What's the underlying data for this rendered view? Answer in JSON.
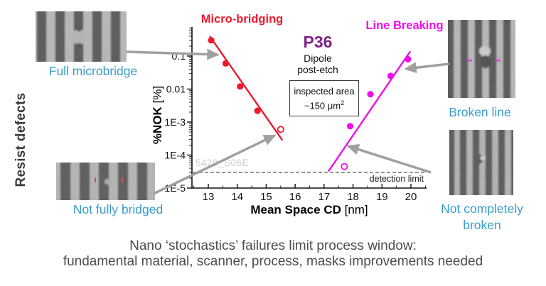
{
  "page": {
    "left_rotated_label": "Resist defects",
    "footer_line1": "Nano ‘stochastics’ failures limit process window:",
    "footer_line2": "fundamental material, scanner, process, masks improvements needed"
  },
  "sem_panels": {
    "top_left_caption": "Full microbridge",
    "bottom_left_caption": "Not fully bridged",
    "top_right_caption": "Broken line",
    "bottom_right_caption_line1": "Not completely",
    "bottom_right_caption_line2": "broken"
  },
  "chart_data": {
    "type": "scatter",
    "series_titles": {
      "left": "Micro-bridging",
      "right": "Line Breaking"
    },
    "center_label": {
      "title": "P36",
      "line1": "Dipole",
      "line2": "post-etch"
    },
    "inspected_box": {
      "line1": "inspected area",
      "line2_prefix": "~150 μm",
      "superscript": "2"
    },
    "watermark": "5429_S06E",
    "xlabel": {
      "main": "Mean Space CD",
      "unit": " [nm]"
    },
    "ylabel": {
      "main": "%NOK",
      "unit": " [%]"
    },
    "x_ticks": [
      13,
      14,
      15,
      16,
      17,
      18,
      19,
      20
    ],
    "y_ticks": [
      {
        "label": "0.1",
        "value": 0.1
      },
      {
        "label": "0.01",
        "value": 0.01
      },
      {
        "label": "1E-3",
        "value": 0.001
      },
      {
        "label": "1E-4",
        "value": 0.0001
      },
      {
        "label": "1E-5",
        "value": 1e-05
      }
    ],
    "xlim": [
      12.44,
      20.55
    ],
    "ylim_log": [
      1e-05,
      0.76
    ],
    "grid": false,
    "detection_limit": {
      "value": 3e-05,
      "label": "detection limit"
    },
    "series": [
      {
        "name": "Micro-bridging",
        "color": "#ec1b2e",
        "trend": {
          "x1": 13.05,
          "y1": 0.4,
          "x2": 15.56,
          "y2": 0.00028
        },
        "points": [
          {
            "x": 13.1,
            "y": 0.3,
            "filled": true
          },
          {
            "x": 13.6,
            "y": 0.06,
            "filled": true
          },
          {
            "x": 14.1,
            "y": 0.012,
            "filled": true
          },
          {
            "x": 14.7,
            "y": 0.0022,
            "filled": true
          },
          {
            "x": 15.5,
            "y": 0.0006,
            "filled": false
          }
        ]
      },
      {
        "name": "Line Breaking",
        "color": "#ee0fea",
        "trend": {
          "x1": 17.15,
          "y1": 3.2e-05,
          "x2": 19.98,
          "y2": 0.14
        },
        "points": [
          {
            "x": 17.7,
            "y": 4.5e-05,
            "filled": false
          },
          {
            "x": 17.9,
            "y": 0.00075,
            "filled": true
          },
          {
            "x": 18.6,
            "y": 0.007,
            "filled": true
          },
          {
            "x": 19.3,
            "y": 0.025,
            "filled": true
          },
          {
            "x": 19.9,
            "y": 0.08,
            "filled": true
          }
        ]
      }
    ]
  }
}
